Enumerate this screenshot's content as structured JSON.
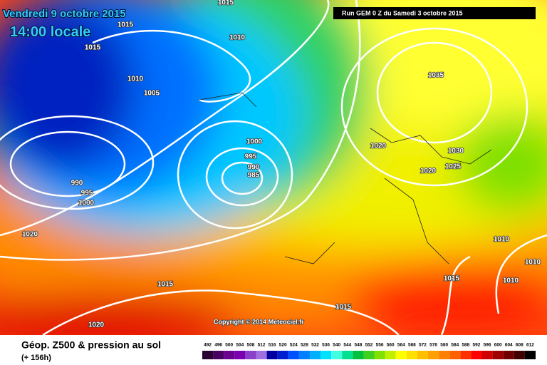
{
  "header": {
    "date": "Vendredi 9 octobre 2015",
    "time": "14:00 locale",
    "run": "Run GEM 0 Z du Samedi 3 octobre 2015"
  },
  "copyright": "Copyright © 2014 Meteociel.fr",
  "footer": {
    "title": "Géop. Z500 & pression au sol",
    "lead": "(+ 156h)"
  },
  "isobar_labels": [
    1015,
    1015,
    1015,
    1010,
    1010,
    1005,
    1000,
    995,
    990,
    985,
    990,
    995,
    1000,
    1020,
    1015,
    1020,
    1015,
    1035,
    1020,
    1030,
    1025,
    1020,
    1010,
    1010,
    1015,
    1010
  ],
  "scale": [
    492,
    496,
    500,
    504,
    508,
    512,
    516,
    520,
    524,
    528,
    532,
    536,
    540,
    544,
    548,
    552,
    556,
    560,
    564,
    568,
    572,
    576,
    580,
    584,
    588,
    592,
    596,
    600,
    604,
    608,
    612
  ],
  "scale_colors": [
    "#2b0033",
    "#4a0060",
    "#6a0090",
    "#7a00b0",
    "#8a40c8",
    "#a070e0",
    "#0000a0",
    "#0020d0",
    "#0050ff",
    "#0080ff",
    "#00b0ff",
    "#00e0ff",
    "#40ffe0",
    "#00e090",
    "#00c040",
    "#40d020",
    "#80e000",
    "#c0f000",
    "#ffff00",
    "#ffe000",
    "#ffc000",
    "#ffa000",
    "#ff8000",
    "#ff6000",
    "#ff3000",
    "#ff0000",
    "#d00000",
    "#a00000",
    "#700000",
    "#400000",
    "#000000"
  ]
}
